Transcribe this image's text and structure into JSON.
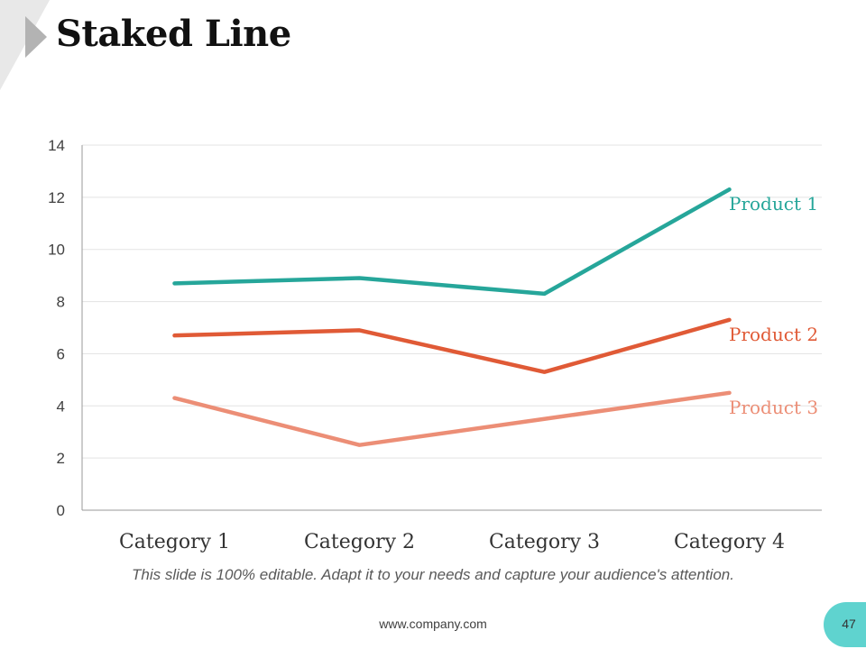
{
  "title": "Staked Line",
  "chart_data": {
    "type": "line",
    "title": "Staked Line",
    "categories": [
      "Category 1",
      "Category 2",
      "Category 3",
      "Category 4"
    ],
    "series": [
      {
        "name": "Product 1",
        "color": "#26a69a",
        "values": [
          8.7,
          8.9,
          8.3,
          12.3
        ]
      },
      {
        "name": "Product 2",
        "color": "#e05a36",
        "values": [
          6.7,
          6.9,
          5.3,
          7.3
        ]
      },
      {
        "name": "Product 3",
        "color": "#ec8e76",
        "values": [
          4.3,
          2.5,
          3.5,
          4.5
        ]
      }
    ],
    "ylim": [
      0,
      14
    ],
    "yticks": [
      0,
      2,
      4,
      6,
      8,
      10,
      12,
      14
    ],
    "xlabel": "",
    "ylabel": "",
    "grid": true,
    "legend": "inline-right"
  },
  "caption": "This slide is 100% editable. Adapt it to your needs and capture your audience's attention.",
  "footer": {
    "url": "www.company.com",
    "page_number": "47"
  }
}
